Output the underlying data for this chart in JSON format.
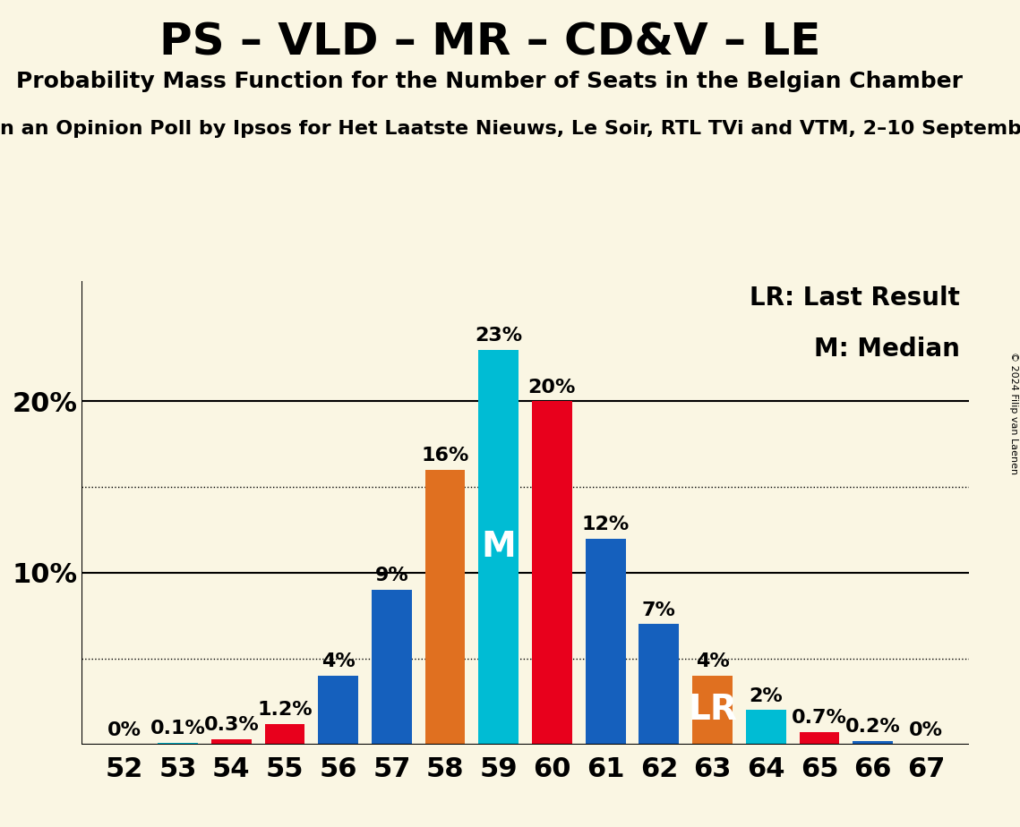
{
  "title": "PS – VLD – MR – CD&V – LE",
  "subtitle1": "Probability Mass Function for the Number of Seats in the Belgian Chamber",
  "subtitle2_visible": "n an Opinion Poll by Ipsos for Het Laatste Nieuws, Le Soir, RTL TVi and VTM, 2–10 Septemb",
  "copyright": "© 2024 Filip van Laenen",
  "background_color": "#faf6e3",
  "seats": [
    52,
    53,
    54,
    55,
    56,
    57,
    58,
    59,
    60,
    61,
    62,
    63,
    64,
    65,
    66,
    67
  ],
  "probabilities": [
    0.0,
    0.1,
    0.3,
    1.2,
    4.0,
    9.0,
    16.0,
    23.0,
    20.0,
    12.0,
    7.0,
    4.0,
    2.0,
    0.7,
    0.2,
    0.0
  ],
  "bar_colors": [
    "#1560bd",
    "#00bcd4",
    "#e8001c",
    "#e8001c",
    "#1560bd",
    "#1560bd",
    "#e07020",
    "#00bcd4",
    "#e8001c",
    "#1560bd",
    "#1560bd",
    "#e07020",
    "#00bcd4",
    "#e8001c",
    "#1560bd",
    "#1560bd"
  ],
  "median_seat": 59,
  "lr_seat": 63,
  "legend_lr": "LR: Last Result",
  "legend_m": "M: Median",
  "ylim": [
    0,
    27
  ],
  "dotted_lines": [
    5,
    15
  ],
  "solid_lines": [
    10,
    20
  ],
  "title_fontsize": 36,
  "subtitle_fontsize": 18,
  "subtitle2_fontsize": 16,
  "axis_label_fontsize": 22,
  "bar_label_fontsize": 16,
  "legend_fontsize": 20,
  "inbar_fontsize": 28
}
